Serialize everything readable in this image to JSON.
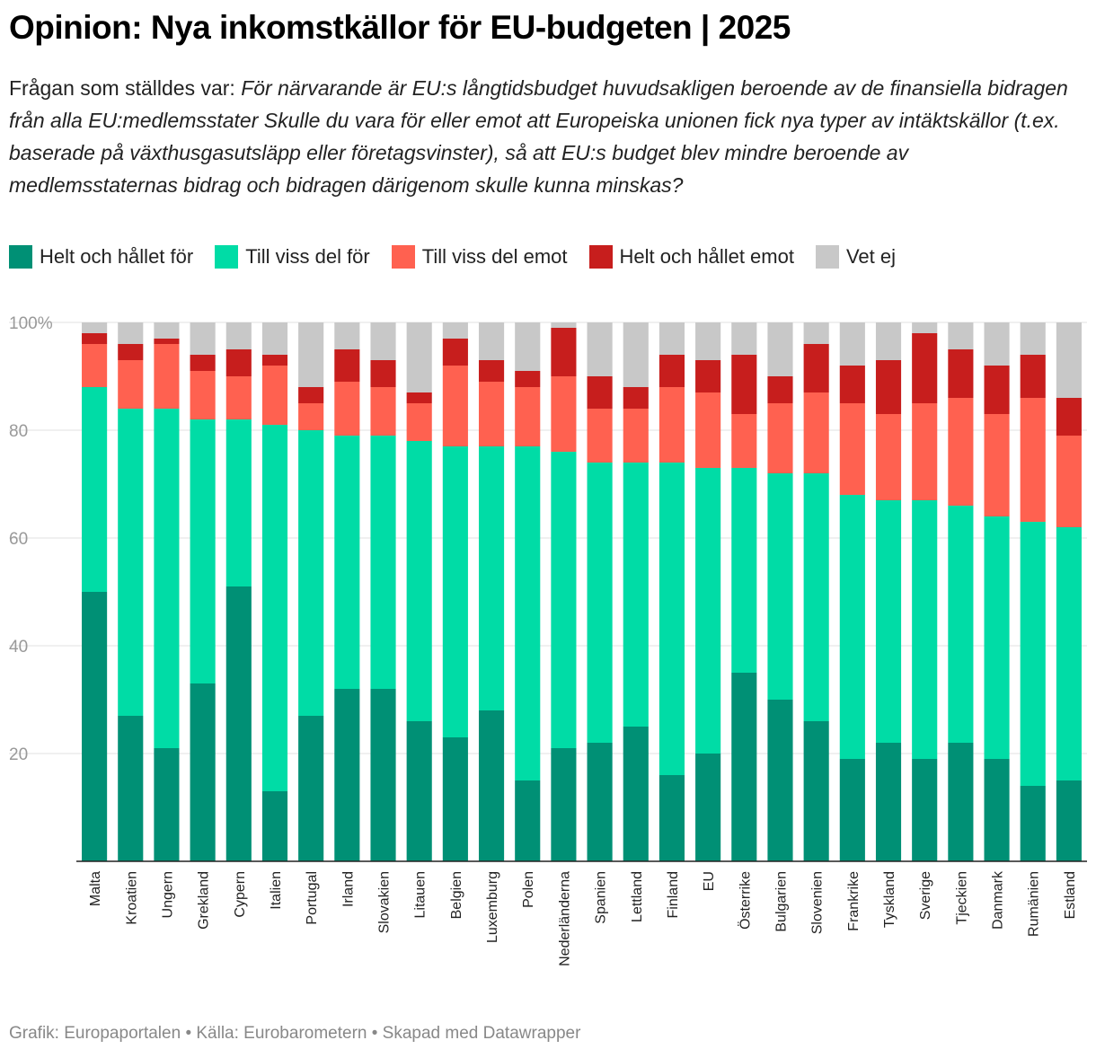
{
  "chart_data": {
    "type": "stacked-bar",
    "title": "Opinion: Nya inkomstkällor för EU-budgeten | 2025",
    "subtitle_lead": "Frågan som ställdes var:",
    "subtitle": "För närvarande är EU:s långtidsbudget huvudsakligen beroende av de finansiella bidragen från alla EU:medlemsstater Skulle du vara för eller emot att Europeiska unionen fick nya typer av intäktskällor (t.ex. baserade på växthusgasutsläpp eller företagsvinster), så att EU:s budget blev mindre beroende av medlemsstaternas bidrag och bidragen därigenom skulle kunna minskas?",
    "categories": [
      "Malta",
      "Kroatien",
      "Ungern",
      "Grekland",
      "Cypern",
      "Italien",
      "Portugal",
      "Irland",
      "Slovakien",
      "Litauen",
      "Belgien",
      "Luxemburg",
      "Polen",
      "Nederländerna",
      "Spanien",
      "Lettland",
      "Finland",
      "EU",
      "Österrike",
      "Bulgarien",
      "Slovenien",
      "Frankrike",
      "Tyskland",
      "Sverige",
      "Tjeckien",
      "Danmark",
      "Rumänien",
      "Estland"
    ],
    "series": [
      {
        "name": "Helt och hållet för",
        "color": "#009075",
        "values": [
          50,
          27,
          21,
          33,
          51,
          13,
          27,
          32,
          32,
          26,
          23,
          28,
          15,
          21,
          22,
          25,
          16,
          20,
          35,
          30,
          26,
          19,
          22,
          19,
          22,
          19,
          14,
          15
        ]
      },
      {
        "name": "Till viss del för",
        "color": "#00dca6",
        "values": [
          38,
          57,
          63,
          49,
          31,
          68,
          53,
          47,
          47,
          52,
          54,
          49,
          62,
          55,
          52,
          49,
          58,
          53,
          38,
          42,
          46,
          49,
          45,
          48,
          44,
          45,
          49,
          47
        ]
      },
      {
        "name": "Till viss del emot",
        "color": "#ff6150",
        "values": [
          8,
          9,
          12,
          9,
          8,
          11,
          5,
          10,
          9,
          7,
          15,
          12,
          11,
          14,
          10,
          10,
          14,
          14,
          10,
          13,
          15,
          17,
          16,
          18,
          20,
          19,
          23,
          17
        ]
      },
      {
        "name": "Helt och hållet emot",
        "color": "#c71e1d",
        "values": [
          2,
          3,
          1,
          3,
          5,
          2,
          3,
          6,
          5,
          2,
          5,
          4,
          3,
          9,
          6,
          4,
          6,
          6,
          11,
          5,
          9,
          7,
          10,
          13,
          9,
          9,
          8,
          7
        ]
      },
      {
        "name": "Vet ej",
        "color": "#c8c8c8",
        "values": [
          2,
          4,
          3,
          6,
          5,
          6,
          12,
          5,
          7,
          13,
          3,
          7,
          9,
          1,
          10,
          12,
          6,
          7,
          6,
          10,
          4,
          8,
          7,
          2,
          5,
          8,
          6,
          14
        ]
      }
    ],
    "ylim": [
      0,
      100
    ],
    "yticks": [
      20,
      40,
      60,
      80,
      {
        "value": 100,
        "label": "100%"
      }
    ],
    "grid": true,
    "footer": "Grafik: Europaportalen • Källa: Eurobarometern • Skapad med Datawrapper"
  }
}
